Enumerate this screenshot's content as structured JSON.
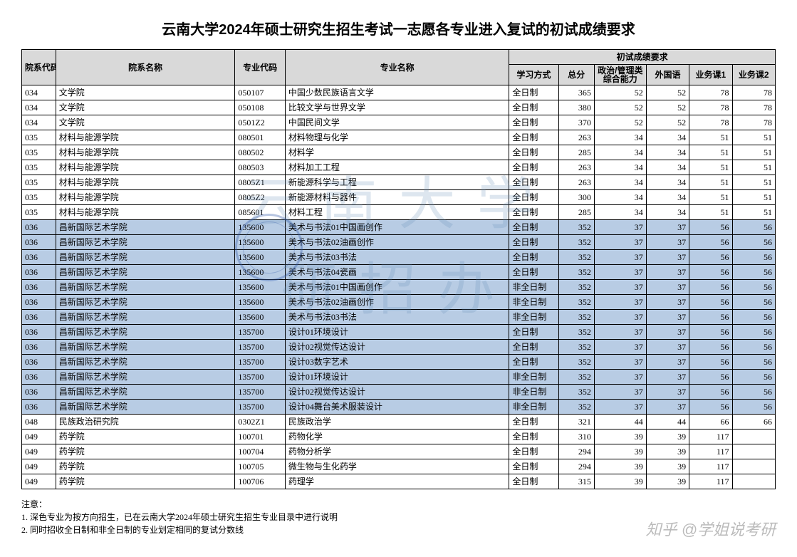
{
  "title": "云南大学2024年硕士研究生招生考试一志愿各专业进入复试的初试成绩要求",
  "headers": {
    "dept_code": "院系代码",
    "dept_name": "院系名称",
    "major_code": "专业代码",
    "major_name": "专业名称",
    "group": "初试成绩要求",
    "mode": "学习方式",
    "total": "总分",
    "politics": "政治/管理类综合能力",
    "foreign": "外国语",
    "course1": "业务课1",
    "course2": "业务课2"
  },
  "rows": [
    {
      "hl": false,
      "dc": "034",
      "dn": "文学院",
      "mc": "050107",
      "mn": "中国少数民族语言文学",
      "mode": "全日制",
      "t": "365",
      "p": "52",
      "f": "52",
      "c1": "78",
      "c2": "78"
    },
    {
      "hl": false,
      "dc": "034",
      "dn": "文学院",
      "mc": "050108",
      "mn": "比较文学与世界文学",
      "mode": "全日制",
      "t": "380",
      "p": "52",
      "f": "52",
      "c1": "78",
      "c2": "78"
    },
    {
      "hl": false,
      "dc": "034",
      "dn": "文学院",
      "mc": "0501Z2",
      "mn": "中国民间文学",
      "mode": "全日制",
      "t": "370",
      "p": "52",
      "f": "52",
      "c1": "78",
      "c2": "78"
    },
    {
      "hl": false,
      "dc": "035",
      "dn": "材料与能源学院",
      "mc": "080501",
      "mn": "材料物理与化学",
      "mode": "全日制",
      "t": "263",
      "p": "34",
      "f": "34",
      "c1": "51",
      "c2": "51"
    },
    {
      "hl": false,
      "dc": "035",
      "dn": "材料与能源学院",
      "mc": "080502",
      "mn": "材料学",
      "mode": "全日制",
      "t": "285",
      "p": "34",
      "f": "34",
      "c1": "51",
      "c2": "51"
    },
    {
      "hl": false,
      "dc": "035",
      "dn": "材料与能源学院",
      "mc": "080503",
      "mn": "材料加工工程",
      "mode": "全日制",
      "t": "263",
      "p": "34",
      "f": "34",
      "c1": "51",
      "c2": "51"
    },
    {
      "hl": false,
      "dc": "035",
      "dn": "材料与能源学院",
      "mc": "0805Z1",
      "mn": "新能源科学与工程",
      "mode": "全日制",
      "t": "263",
      "p": "34",
      "f": "34",
      "c1": "51",
      "c2": "51"
    },
    {
      "hl": false,
      "dc": "035",
      "dn": "材料与能源学院",
      "mc": "0805Z2",
      "mn": "新能源材料与器件",
      "mode": "全日制",
      "t": "300",
      "p": "34",
      "f": "34",
      "c1": "51",
      "c2": "51"
    },
    {
      "hl": false,
      "dc": "035",
      "dn": "材料与能源学院",
      "mc": "085601",
      "mn": "材料工程",
      "mode": "全日制",
      "t": "285",
      "p": "34",
      "f": "34",
      "c1": "51",
      "c2": "51"
    },
    {
      "hl": true,
      "dc": "036",
      "dn": "昌新国际艺术学院",
      "mc": "135600",
      "mn": "美术与书法01中国画创作",
      "mode": "全日制",
      "t": "352",
      "p": "37",
      "f": "37",
      "c1": "56",
      "c2": "56"
    },
    {
      "hl": true,
      "dc": "036",
      "dn": "昌新国际艺术学院",
      "mc": "135600",
      "mn": "美术与书法02油画创作",
      "mode": "全日制",
      "t": "352",
      "p": "37",
      "f": "37",
      "c1": "56",
      "c2": "56"
    },
    {
      "hl": true,
      "dc": "036",
      "dn": "昌新国际艺术学院",
      "mc": "135600",
      "mn": "美术与书法03书法",
      "mode": "全日制",
      "t": "352",
      "p": "37",
      "f": "37",
      "c1": "56",
      "c2": "56"
    },
    {
      "hl": true,
      "dc": "036",
      "dn": "昌新国际艺术学院",
      "mc": "135600",
      "mn": "美术与书法04瓷画",
      "mode": "全日制",
      "t": "352",
      "p": "37",
      "f": "37",
      "c1": "56",
      "c2": "56"
    },
    {
      "hl": true,
      "dc": "036",
      "dn": "昌新国际艺术学院",
      "mc": "135600",
      "mn": "美术与书法01中国画创作",
      "mode": "非全日制",
      "t": "352",
      "p": "37",
      "f": "37",
      "c1": "56",
      "c2": "56"
    },
    {
      "hl": true,
      "dc": "036",
      "dn": "昌新国际艺术学院",
      "mc": "135600",
      "mn": "美术与书法02油画创作",
      "mode": "非全日制",
      "t": "352",
      "p": "37",
      "f": "37",
      "c1": "56",
      "c2": "56"
    },
    {
      "hl": true,
      "dc": "036",
      "dn": "昌新国际艺术学院",
      "mc": "135600",
      "mn": "美术与书法03书法",
      "mode": "非全日制",
      "t": "352",
      "p": "37",
      "f": "37",
      "c1": "56",
      "c2": "56"
    },
    {
      "hl": true,
      "dc": "036",
      "dn": "昌新国际艺术学院",
      "mc": "135700",
      "mn": "设计01环境设计",
      "mode": "全日制",
      "t": "352",
      "p": "37",
      "f": "37",
      "c1": "56",
      "c2": "56"
    },
    {
      "hl": true,
      "dc": "036",
      "dn": "昌新国际艺术学院",
      "mc": "135700",
      "mn": "设计02视觉传达设计",
      "mode": "全日制",
      "t": "352",
      "p": "37",
      "f": "37",
      "c1": "56",
      "c2": "56"
    },
    {
      "hl": true,
      "dc": "036",
      "dn": "昌新国际艺术学院",
      "mc": "135700",
      "mn": "设计03数字艺术",
      "mode": "全日制",
      "t": "352",
      "p": "37",
      "f": "37",
      "c1": "56",
      "c2": "56"
    },
    {
      "hl": true,
      "dc": "036",
      "dn": "昌新国际艺术学院",
      "mc": "135700",
      "mn": "设计01环境设计",
      "mode": "非全日制",
      "t": "352",
      "p": "37",
      "f": "37",
      "c1": "56",
      "c2": "56"
    },
    {
      "hl": true,
      "dc": "036",
      "dn": "昌新国际艺术学院",
      "mc": "135700",
      "mn": "设计02视觉传达设计",
      "mode": "非全日制",
      "t": "352",
      "p": "37",
      "f": "37",
      "c1": "56",
      "c2": "56"
    },
    {
      "hl": true,
      "dc": "036",
      "dn": "昌新国际艺术学院",
      "mc": "135700",
      "mn": "设计04舞台美术服装设计",
      "mode": "非全日制",
      "t": "352",
      "p": "37",
      "f": "37",
      "c1": "56",
      "c2": "56"
    },
    {
      "hl": false,
      "dc": "048",
      "dn": "民族政治研究院",
      "mc": "0302Z1",
      "mn": "民族政治学",
      "mode": "全日制",
      "t": "321",
      "p": "44",
      "f": "44",
      "c1": "66",
      "c2": "66"
    },
    {
      "hl": false,
      "dc": "049",
      "dn": "药学院",
      "mc": "100701",
      "mn": "药物化学",
      "mode": "全日制",
      "t": "310",
      "p": "39",
      "f": "39",
      "c1": "117",
      "c2": ""
    },
    {
      "hl": false,
      "dc": "049",
      "dn": "药学院",
      "mc": "100704",
      "mn": "药物分析学",
      "mode": "全日制",
      "t": "294",
      "p": "39",
      "f": "39",
      "c1": "117",
      "c2": ""
    },
    {
      "hl": false,
      "dc": "049",
      "dn": "药学院",
      "mc": "100705",
      "mn": "微生物与生化药学",
      "mode": "全日制",
      "t": "294",
      "p": "39",
      "f": "39",
      "c1": "117",
      "c2": ""
    },
    {
      "hl": false,
      "dc": "049",
      "dn": "药学院",
      "mc": "100706",
      "mn": "药理学",
      "mode": "全日制",
      "t": "315",
      "p": "39",
      "f": "39",
      "c1": "117",
      "c2": ""
    }
  ],
  "notes": {
    "label": "注意：",
    "n1": "1. 深色专业为按方向招生，已在云南大学2024年硕士研究生招生专业目录中进行说明",
    "n2": "2. 同时招收全日制和非全日制的专业划定相同的复试分数线"
  },
  "watermark_l1": "云南大学",
  "watermark_l2": "研招办",
  "zhihu": "知乎 @学姐说考研",
  "colors": {
    "header_bg": "#d9d9d9",
    "highlight_bg": "#b8cce4",
    "border": "#000000",
    "watermark": "rgba(100,140,180,0.22)"
  }
}
